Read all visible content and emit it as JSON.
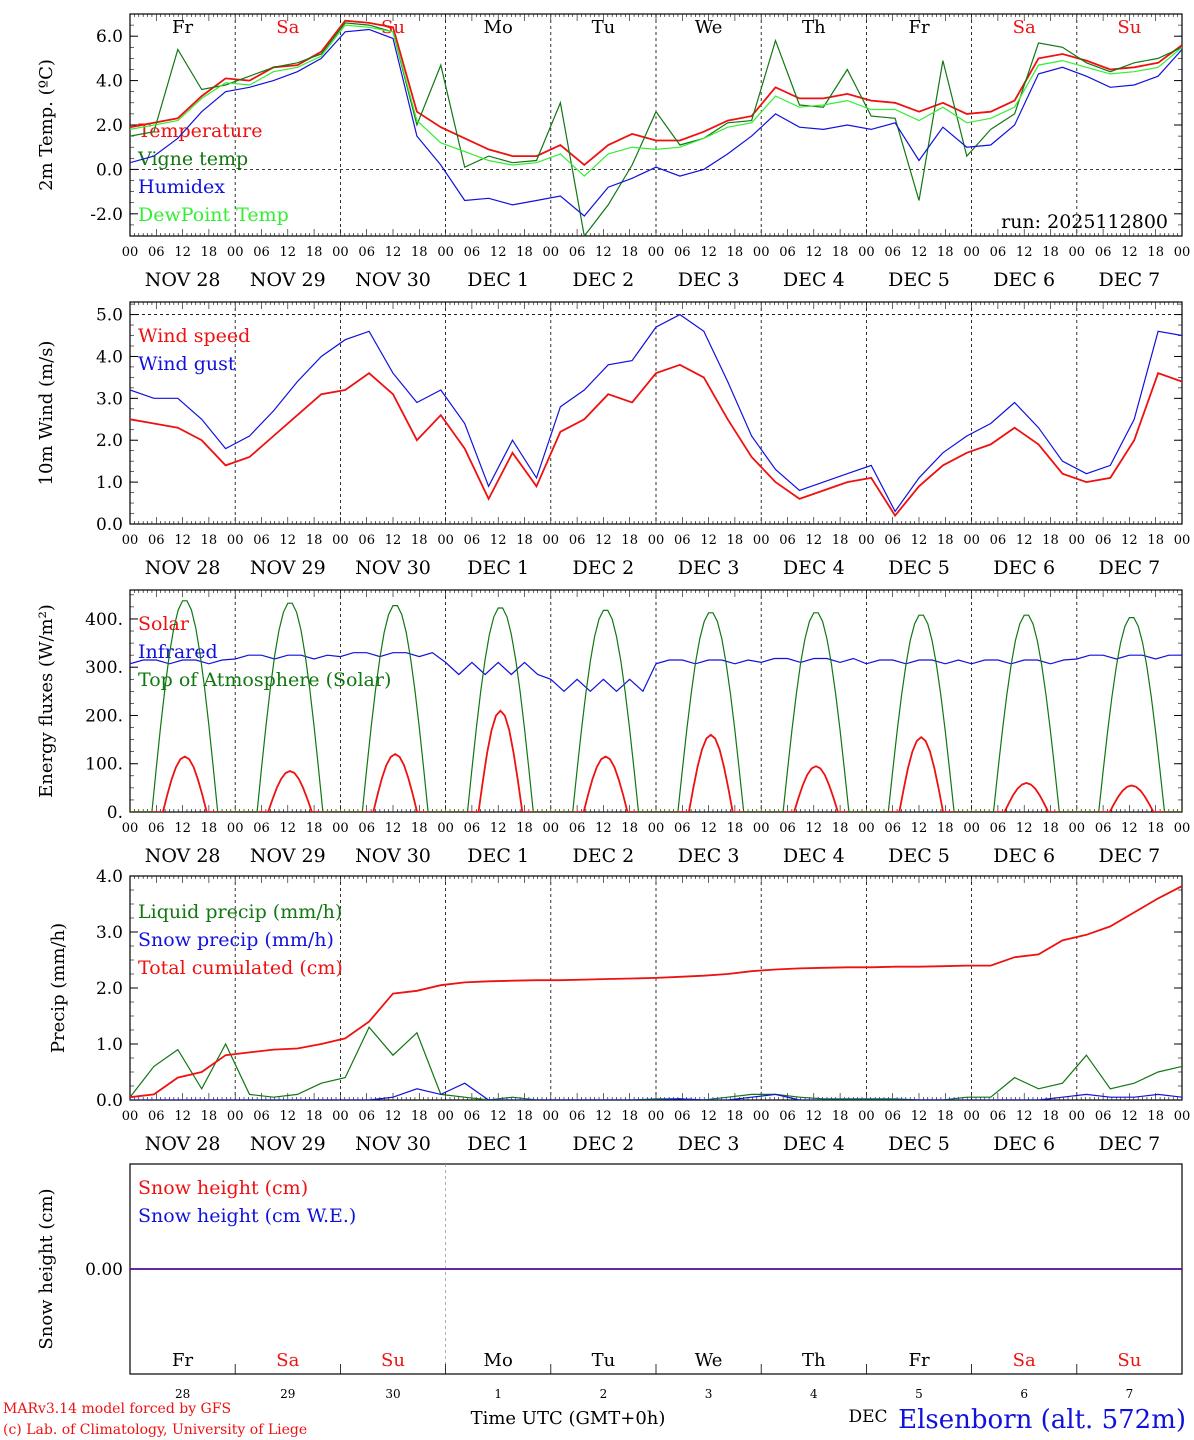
{
  "run_label": "run: 2025112800",
  "footer": {
    "model": "MARv3.14 model forced by GFS",
    "lab": "(c) Lab. of Climatology, University of Liege",
    "xlabel": "Time UTC (GMT+0h)",
    "station": "Elsenborn (alt. 572m)",
    "month_label": "DEC"
  },
  "colors": {
    "red": "#ee1111",
    "green": "#117711",
    "blue": "#1111dd",
    "lightgreen": "#33ee33"
  },
  "days": {
    "weekdays": [
      "Fr",
      "Sa",
      "Su",
      "Mo",
      "Tu",
      "We",
      "Th",
      "Fr",
      "Sa",
      "Su"
    ],
    "weekend": [
      false,
      true,
      true,
      false,
      false,
      false,
      false,
      false,
      true,
      true
    ],
    "dates": [
      "NOV 28",
      "NOV 29",
      "NOV 30",
      "DEC 1",
      "DEC 2",
      "DEC 3",
      "DEC 4",
      "DEC 5",
      "DEC 6",
      "DEC 7"
    ],
    "daynums": [
      "28",
      "29",
      "30",
      "1",
      "2",
      "3",
      "4",
      "5",
      "6",
      "7"
    ],
    "hour_ticks": [
      "00",
      "06",
      "12",
      "18"
    ],
    "final_tick": "00"
  },
  "chart_data": [
    {
      "type": "line",
      "id": "temp",
      "ylabel": "2m Temp. (ºC)",
      "ylim": [
        -3.0,
        7.0
      ],
      "yticks": [
        "-2.0",
        "0.0",
        "2.0",
        "4.0",
        "6.0"
      ],
      "ytick_values": [
        -2,
        0,
        2,
        4,
        6
      ],
      "dashed_y": [
        0
      ],
      "x_hours_step": 6,
      "series": [
        {
          "name": "Temperature",
          "color": "red",
          "values": [
            1.9,
            2.1,
            2.3,
            3.3,
            4.1,
            4.0,
            4.6,
            4.7,
            5.3,
            6.7,
            6.6,
            6.4,
            2.6,
            1.9,
            1.4,
            0.9,
            0.6,
            0.6,
            1.1,
            0.2,
            1.1,
            1.6,
            1.3,
            1.3,
            1.7,
            2.2,
            2.4,
            3.7,
            3.2,
            3.2,
            3.4,
            3.1,
            3.0,
            2.6,
            3.0,
            2.5,
            2.6,
            3.1,
            5.0,
            5.2,
            4.9,
            4.5,
            4.6,
            4.8,
            5.6
          ]
        },
        {
          "name": "Vigne temp",
          "color": "green",
          "values": [
            1.5,
            1.7,
            5.4,
            3.6,
            3.8,
            4.2,
            4.6,
            4.8,
            5.2,
            6.6,
            6.5,
            6.2,
            2.0,
            4.7,
            0.1,
            0.6,
            0.3,
            0.4,
            3.0,
            -3.0,
            -1.6,
            0.2,
            2.6,
            1.1,
            1.4,
            2.1,
            2.2,
            5.8,
            2.9,
            2.8,
            4.5,
            2.4,
            2.3,
            -1.4,
            4.9,
            0.6,
            1.8,
            2.5,
            5.7,
            5.5,
            4.8,
            4.4,
            4.8,
            5.0,
            5.5
          ]
        },
        {
          "name": "Humidex",
          "color": "blue",
          "values": [
            0.3,
            0.6,
            1.4,
            2.6,
            3.5,
            3.7,
            4.0,
            4.4,
            5.0,
            6.2,
            6.3,
            5.9,
            1.5,
            0.2,
            -1.4,
            -1.3,
            -1.6,
            -1.4,
            -1.2,
            -2.1,
            -0.8,
            -0.4,
            0.1,
            -0.3,
            0.0,
            0.7,
            1.5,
            2.5,
            1.9,
            1.8,
            2.0,
            1.8,
            2.1,
            0.4,
            1.9,
            1.0,
            1.1,
            2.0,
            4.3,
            4.6,
            4.2,
            3.7,
            3.8,
            4.2,
            5.4
          ]
        },
        {
          "name": "DewPoint Temp",
          "color": "lightgreen",
          "values": [
            1.8,
            2.0,
            2.2,
            3.2,
            3.9,
            3.8,
            4.4,
            4.6,
            5.1,
            6.5,
            6.4,
            6.2,
            2.2,
            1.2,
            0.8,
            0.4,
            0.2,
            0.3,
            0.7,
            -0.3,
            0.7,
            1.0,
            0.9,
            1.0,
            1.4,
            1.9,
            2.1,
            3.3,
            2.8,
            2.9,
            3.1,
            2.7,
            2.7,
            2.2,
            2.8,
            2.1,
            2.3,
            2.8,
            4.7,
            4.9,
            4.6,
            4.3,
            4.4,
            4.6,
            5.5
          ]
        }
      ]
    },
    {
      "type": "line",
      "id": "wind",
      "ylabel": "10m Wind (m/s)",
      "ylim": [
        0.0,
        5.3
      ],
      "yticks": [
        "0.0",
        "1.0",
        "2.0",
        "3.0",
        "4.0",
        "5.0"
      ],
      "ytick_values": [
        0,
        1,
        2,
        3,
        4,
        5
      ],
      "dashed_y": [
        5
      ],
      "x_hours_step": 6,
      "series": [
        {
          "name": "Wind speed",
          "color": "red",
          "values": [
            2.5,
            2.4,
            2.3,
            2.0,
            1.4,
            1.6,
            2.1,
            2.6,
            3.1,
            3.2,
            3.6,
            3.1,
            2.0,
            2.6,
            1.8,
            0.6,
            1.7,
            0.9,
            2.2,
            2.5,
            3.1,
            2.9,
            3.6,
            3.8,
            3.5,
            2.5,
            1.6,
            1.0,
            0.6,
            0.8,
            1.0,
            1.1,
            0.2,
            0.9,
            1.4,
            1.7,
            1.9,
            2.3,
            1.9,
            1.2,
            1.0,
            1.1,
            2.0,
            3.6,
            3.4
          ]
        },
        {
          "name": "Wind gust",
          "color": "blue",
          "values": [
            3.2,
            3.0,
            3.0,
            2.5,
            1.8,
            2.1,
            2.7,
            3.4,
            4.0,
            4.4,
            4.6,
            3.6,
            2.9,
            3.2,
            2.4,
            0.9,
            2.0,
            1.1,
            2.8,
            3.2,
            3.8,
            3.9,
            4.7,
            5.0,
            4.6,
            3.4,
            2.1,
            1.3,
            0.8,
            1.0,
            1.2,
            1.4,
            0.3,
            1.1,
            1.7,
            2.1,
            2.4,
            2.9,
            2.3,
            1.5,
            1.2,
            1.4,
            2.5,
            4.6,
            4.5
          ]
        }
      ]
    },
    {
      "type": "line",
      "id": "energy",
      "ylabel": "Energy fluxes (W/m²)",
      "ylim": [
        0,
        460
      ],
      "yticks": [
        "0.",
        "100.",
        "200.",
        "300.",
        "400."
      ],
      "ytick_values": [
        0,
        100,
        200,
        300,
        400
      ],
      "dashed_y": [],
      "series_hourly_note": "values are daily peaks at ~12 UTC",
      "series": [
        {
          "name": "Solar",
          "color": "red",
          "daily_peaks": [
            115,
            85,
            120,
            210,
            115,
            160,
            95,
            155,
            60,
            55
          ]
        },
        {
          "name": "Infrared",
          "color": "blue",
          "daily_baseline": [
            315,
            325,
            330,
            300,
            265,
            315,
            318,
            315,
            315,
            325
          ]
        },
        {
          "name": "Top of Atmosphere (Solar)",
          "color": "green",
          "daily_peaks": [
            440,
            435,
            430,
            425,
            420,
            415,
            415,
            410,
            410,
            405
          ]
        }
      ]
    },
    {
      "type": "line",
      "id": "precip",
      "ylabel": "Precip (mm/h)",
      "ylim": [
        0.0,
        4.0
      ],
      "yticks": [
        "0.0",
        "1.0",
        "2.0",
        "3.0",
        "4.0"
      ],
      "ytick_values": [
        0,
        1,
        2,
        3,
        4
      ],
      "dashed_y": [],
      "x_hours_step": 6,
      "series": [
        {
          "name": "Liquid precip (mm/h)",
          "color": "green",
          "values": [
            0.05,
            0.6,
            0.9,
            0.2,
            1.0,
            0.1,
            0.05,
            0.1,
            0.3,
            0.4,
            1.3,
            0.8,
            1.2,
            0.1,
            0.05,
            0.0,
            0.05,
            0.0,
            0.0,
            0.0,
            0.0,
            0.0,
            0.02,
            0.02,
            0.0,
            0.05,
            0.1,
            0.1,
            0.05,
            0.02,
            0.02,
            0.02,
            0.02,
            0.0,
            0.0,
            0.05,
            0.05,
            0.4,
            0.2,
            0.3,
            0.8,
            0.2,
            0.3,
            0.5,
            0.6
          ]
        },
        {
          "name": "Snow precip (mm/h)",
          "color": "blue",
          "values": [
            0.0,
            0.0,
            0.0,
            0.0,
            0.0,
            0.0,
            0.0,
            0.0,
            0.0,
            0.0,
            0.0,
            0.05,
            0.2,
            0.1,
            0.3,
            0.0,
            0.0,
            0.0,
            0.0,
            0.0,
            0.0,
            0.0,
            0.0,
            0.02,
            0.0,
            0.0,
            0.05,
            0.1,
            0.0,
            0.0,
            0.0,
            0.0,
            0.0,
            0.0,
            0.0,
            0.0,
            0.0,
            0.0,
            0.0,
            0.05,
            0.1,
            0.05,
            0.05,
            0.1,
            0.05
          ]
        },
        {
          "name": "Total cumulated (cm)",
          "color": "red",
          "values": [
            0.05,
            0.1,
            0.4,
            0.5,
            0.8,
            0.85,
            0.9,
            0.92,
            1.0,
            1.1,
            1.4,
            1.9,
            1.95,
            2.05,
            2.1,
            2.12,
            2.13,
            2.14,
            2.14,
            2.15,
            2.16,
            2.17,
            2.18,
            2.2,
            2.22,
            2.25,
            2.3,
            2.33,
            2.35,
            2.36,
            2.37,
            2.37,
            2.38,
            2.38,
            2.39,
            2.4,
            2.4,
            2.55,
            2.6,
            2.85,
            2.95,
            3.1,
            3.35,
            3.6,
            3.82
          ]
        }
      ]
    },
    {
      "type": "line",
      "id": "snow",
      "ylabel": "Snow height (cm)",
      "ylim": [
        -1,
        1
      ],
      "yticks": [
        "0.00"
      ],
      "ytick_values": [
        0
      ],
      "dashed_y": [],
      "series": [
        {
          "name": "Snow height (cm)",
          "color": "red",
          "values": [
            0.0
          ]
        },
        {
          "name": "Snow height (cm W.E.)",
          "color": "blue",
          "values": [
            0.0
          ]
        }
      ]
    }
  ]
}
